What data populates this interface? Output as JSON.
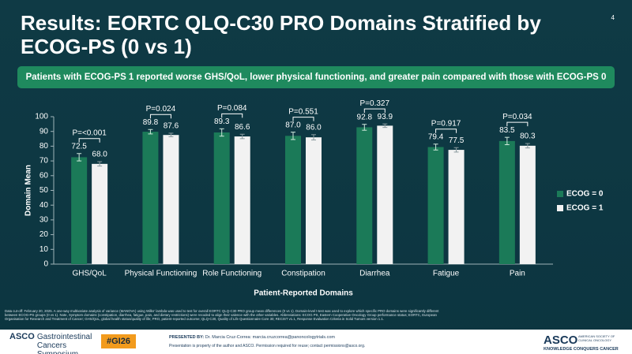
{
  "slide": {
    "title": "Results: EORTC QLQ-C30 PRO Domains Stratified by ECOG-PS (0 vs 1)",
    "slide_number": "4",
    "banner": "Patients with ECOG-PS 1 reported worse GHS/QoL, lower physical functioning, and greater pain compared with those with ECOG-PS 0",
    "footnote": "Data cut-off: February 20, 2025. A one-way multivariate analysis of variance (MANOVA) using Wilks' lambda was used to test for overall EORTC QLQ-C30 PRO group mean differences (0 vs 1). Domain-level t-test was used to explore which specific PRO domains were significantly different between ECOG-PS groups (0 vs 1). Note, Symptom domains (constipation, diarrhea, fatigue, pain, and dietary restrictions) were recoded to align their valence with the other variables. Abbreviations: ECOG PS, Eastern Cooperative Oncology Group performance status; EORTC, European Organisation for Research and Treatment of Cancer; GHS/QoL, global health status/quality of life; PRO, patient-reported outcome; QLQ-C30, Quality of Life Questionnaire Core 30; RECIST v1.1, Response Evaluation Criteria in Solid Tumors version 1.1.",
    "footer": {
      "meeting_brand": "ASCO",
      "meeting_name": "Gastrointestinal Cancers Symposium",
      "hashtag": "#GI26",
      "presented_by_label": "PRESENTED BY:",
      "presenter": "Dr. Marcia Cruz-Correa: marcia.cruzcorrea@panoncologytrials.com",
      "permission": "Presentation is property of the author and ASCO. Permission required for reuse; contact permissions@asco.org.",
      "society_logo": "ASCO",
      "society_name": "AMERICAN SOCIETY OF CLINICAL ONCOLOGY",
      "society_tagline": "KNOWLEDGE CONQUERS CANCER"
    }
  },
  "chart_data": {
    "type": "bar",
    "x_label": "Patient-Reported Domains",
    "y_label": "Domain Mean",
    "categories": [
      "GHS/QoL",
      "Physical Functioning",
      "Role Functioning",
      "Constipation",
      "Diarrhea",
      "Fatigue",
      "Pain"
    ],
    "series": [
      {
        "name": "ECOG = 0",
        "color": "#1b7a58",
        "values": [
          72.5,
          89.8,
          89.3,
          87.0,
          92.8,
          79.4,
          83.5
        ],
        "value_labels": [
          "72.5",
          "89.8",
          "89.3",
          "87.0",
          "92.8",
          "79.4",
          "83.5"
        ],
        "errors": [
          2.5,
          1.5,
          2.5,
          2.5,
          2,
          2,
          2.5
        ]
      },
      {
        "name": "ECOG = 1",
        "color": "#f2f2f2",
        "values": [
          68.0,
          87.6,
          86.6,
          86.0,
          93.9,
          77.5,
          80.3
        ],
        "value_labels": [
          "68.0",
          "87.6",
          "86.6",
          "86.0",
          "93.9",
          "77.5",
          "80.3"
        ],
        "errors": [
          1.5,
          1.2,
          1.5,
          1.8,
          1.2,
          1.5,
          1.5
        ]
      }
    ],
    "annotations": [
      {
        "text": "P=<0.001",
        "color": "#3fbf7f"
      },
      {
        "text": "P=0.024",
        "color": "#3fbf7f"
      },
      {
        "text": "P=0.084",
        "color": "#ffffff"
      },
      {
        "text": "P=0.551",
        "color": "#ffffff"
      },
      {
        "text": "P=0.327",
        "color": "#ffffff"
      },
      {
        "text": "P=0.917",
        "color": "#ffffff"
      },
      {
        "text": "P=0.034",
        "color": "#3fbf7f"
      }
    ],
    "ylim": [
      0,
      100
    ],
    "yticks": [
      0,
      10,
      20,
      30,
      40,
      50,
      60,
      70,
      80,
      90,
      100
    ],
    "grid": false,
    "legend": "right"
  }
}
